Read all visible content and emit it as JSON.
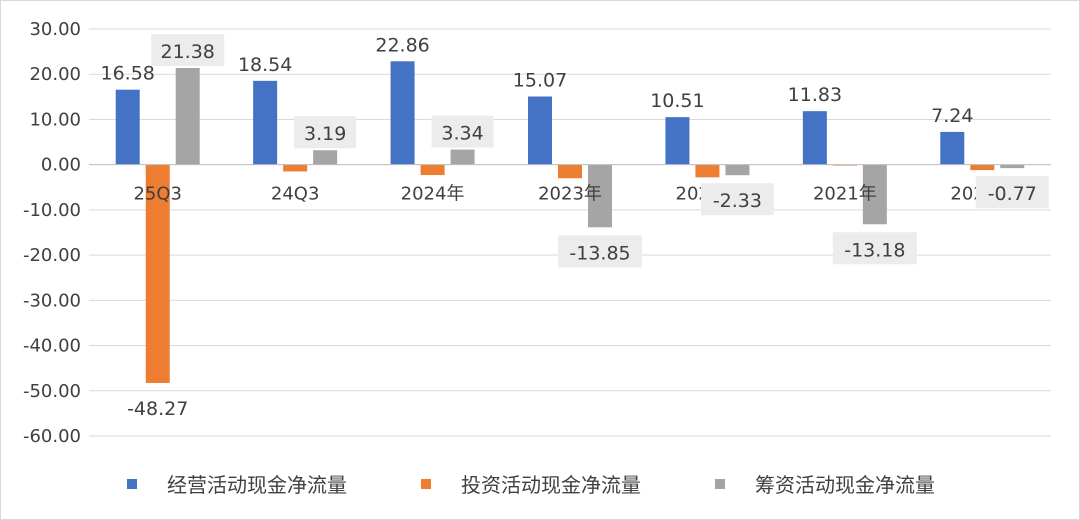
{
  "chart_data": {
    "type": "bar",
    "categories": [
      "25Q3",
      "24Q3",
      "2024年",
      "2023年",
      "2022年",
      "2021年",
      "2020年"
    ],
    "series": [
      {
        "name": "经营活动现金净流量",
        "color": "#4472C4",
        "values": [
          16.58,
          18.54,
          22.86,
          15.07,
          10.51,
          11.83,
          7.24
        ],
        "labels": [
          "16.58",
          "18.54",
          "22.86",
          "15.07",
          "10.51",
          "11.83",
          "7.24"
        ]
      },
      {
        "name": "投资活动现金净流量",
        "color": "#ED7D31",
        "values": [
          -48.27,
          -1.5,
          -2.3,
          -3.0,
          -2.8,
          -0.2,
          -1.2
        ],
        "labels": [
          "-48.27",
          "",
          "",
          "",
          "",
          "",
          ""
        ]
      },
      {
        "name": "筹资活动现金净流量",
        "color": "#A5A5A5",
        "values": [
          21.38,
          3.19,
          3.34,
          -13.85,
          -2.33,
          -13.18,
          -0.77
        ],
        "labels": [
          "21.38",
          "3.19",
          "3.34",
          "-13.85",
          "-2.33",
          "-13.18",
          "-0.77"
        ]
      }
    ],
    "yticks": [
      "30.00",
      "20.00",
      "10.00",
      "0.00",
      "-10.00",
      "-20.00",
      "-30.00",
      "-40.00",
      "-50.00",
      "-60.00"
    ],
    "ylim": [
      -60,
      30
    ],
    "grid": true,
    "legend_position": "bottom"
  }
}
